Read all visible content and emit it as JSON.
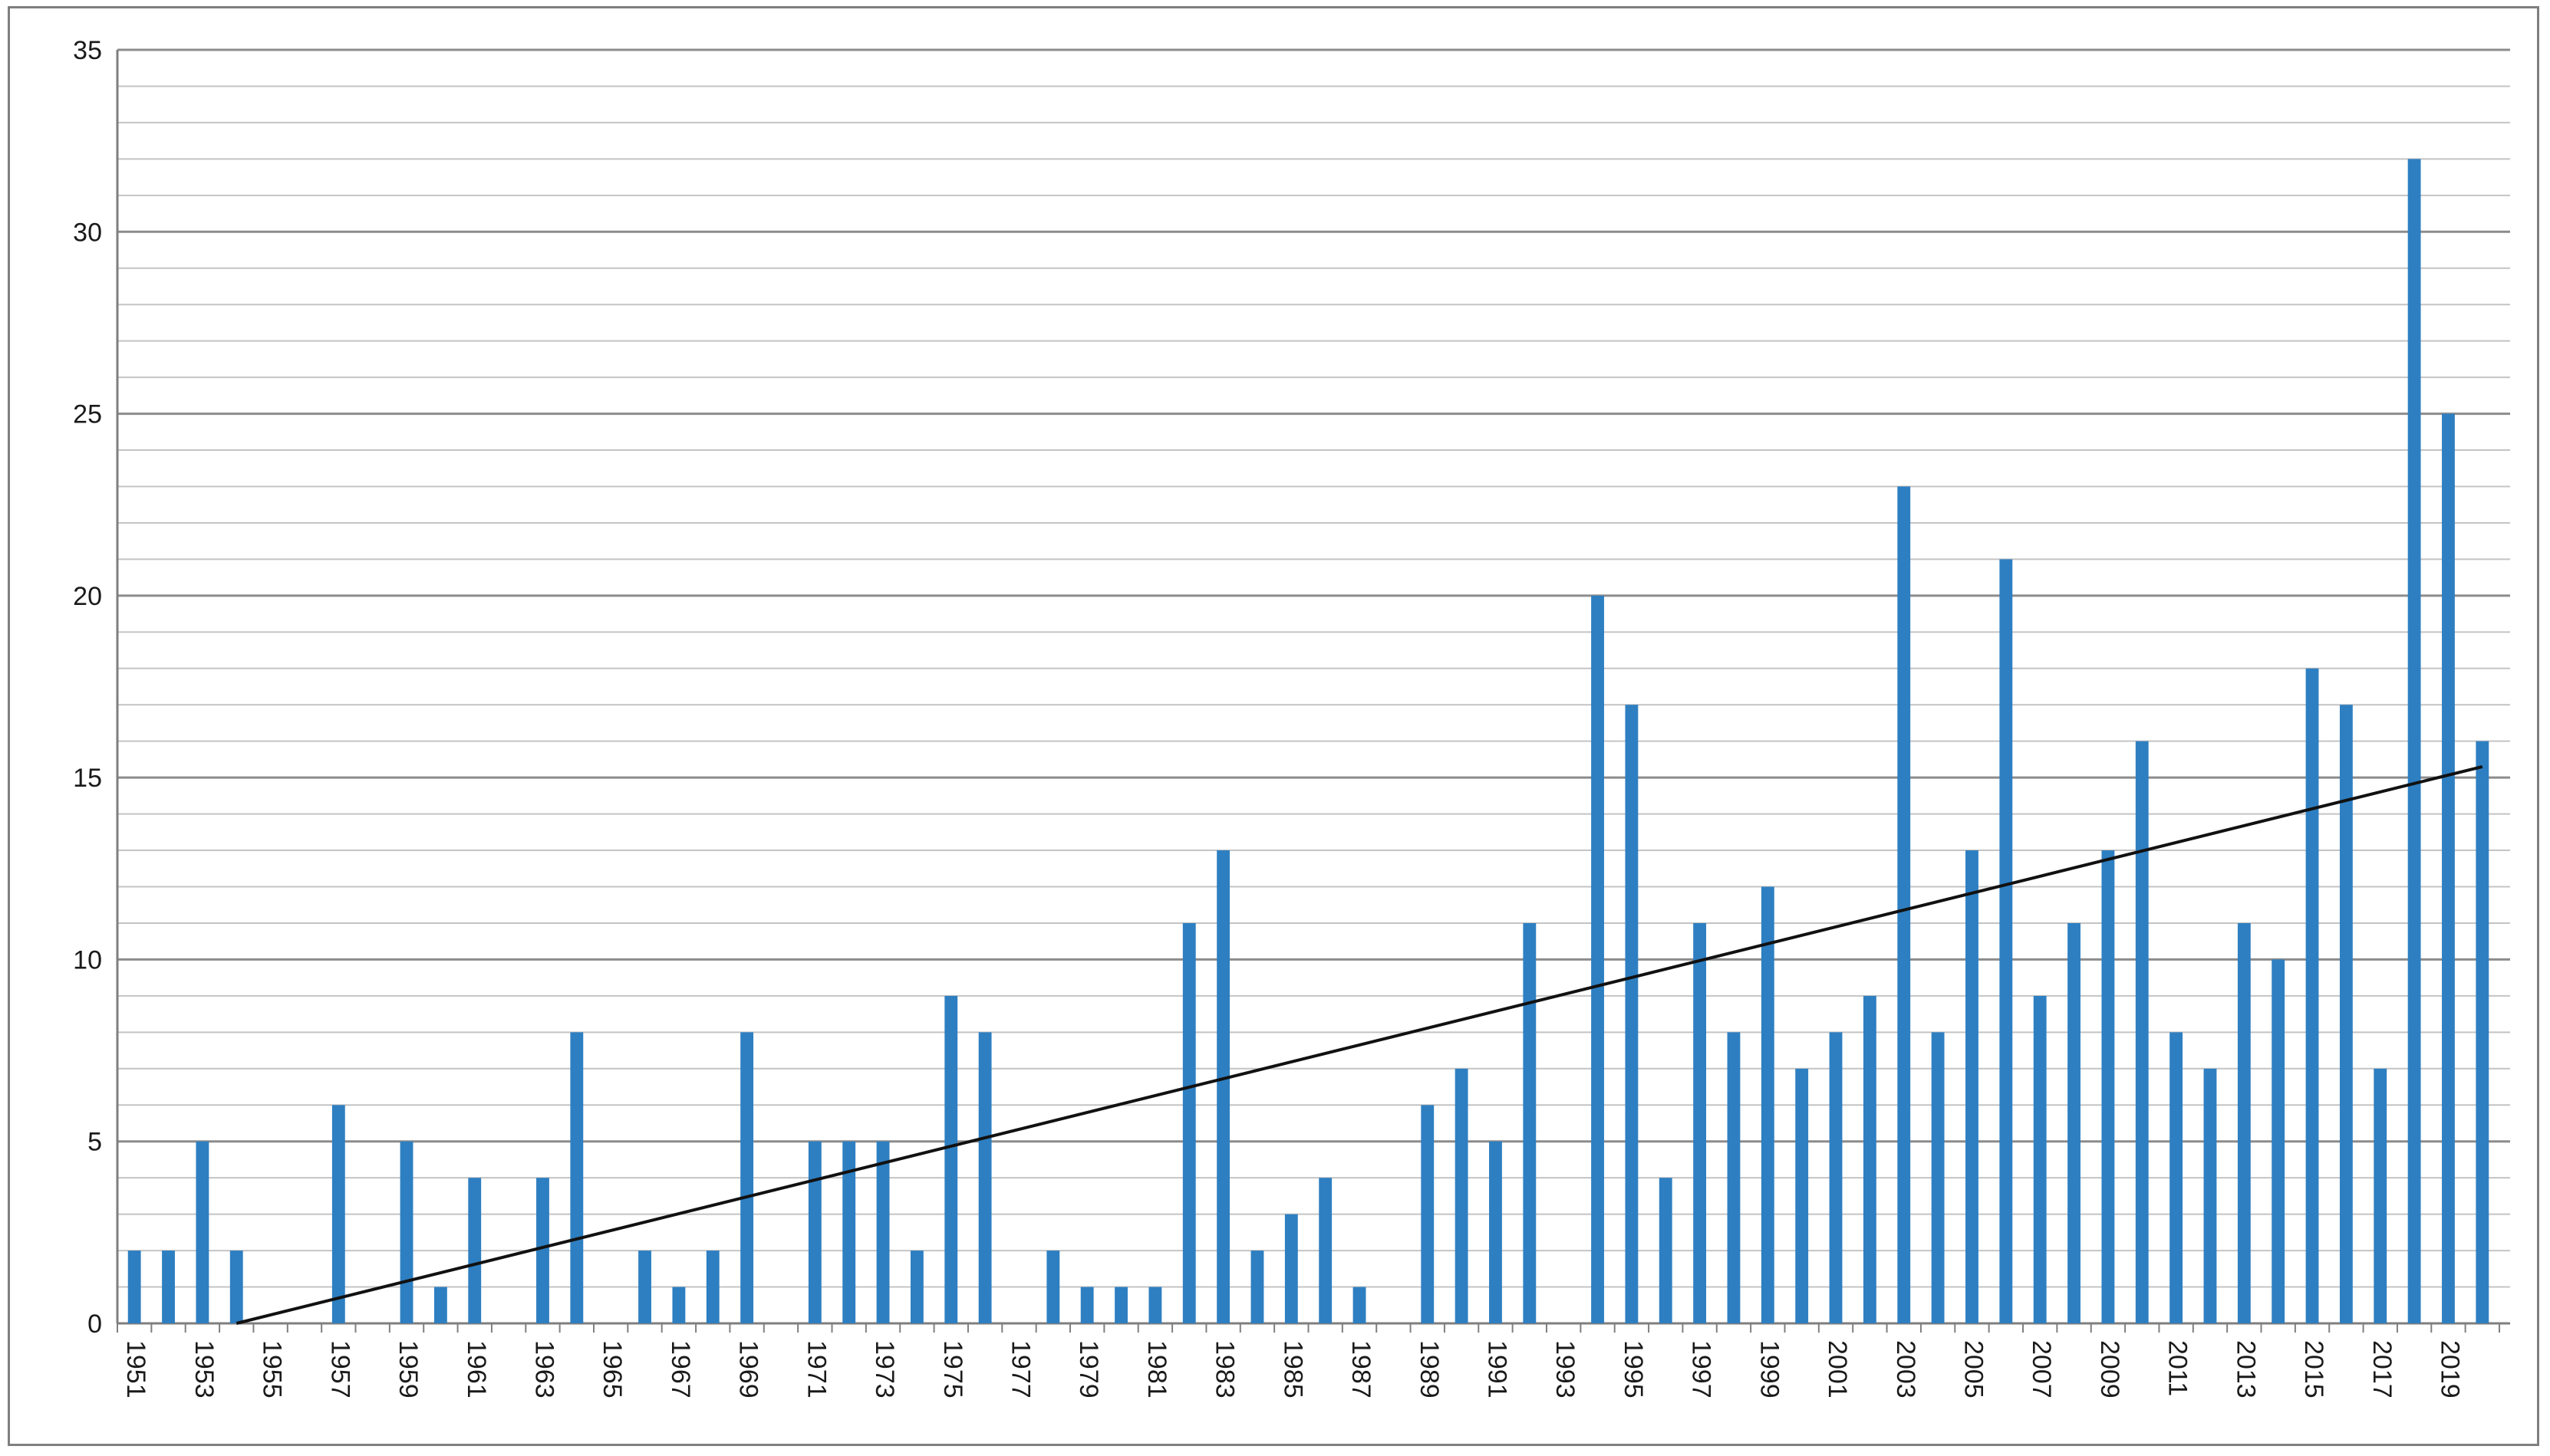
{
  "chart_data": {
    "type": "bar",
    "title": "",
    "xlabel": "",
    "ylabel": "",
    "ylim": [
      0,
      35
    ],
    "yticks": [
      0,
      5,
      10,
      15,
      20,
      25,
      30,
      35
    ],
    "minor_grid_step": 1,
    "grid": true,
    "legend": "none",
    "bar_color": "#2e7fc1",
    "trend_color": "#111111",
    "categories": [
      "1951",
      "1952",
      "1953",
      "1954",
      "1955",
      "1956",
      "1957",
      "1958",
      "1959",
      "1960",
      "1961",
      "1962",
      "1963",
      "1964",
      "1965",
      "1966",
      "1967",
      "1968",
      "1969",
      "1970",
      "1971",
      "1972",
      "1973",
      "1974",
      "1975",
      "1976",
      "1977",
      "1978",
      "1979",
      "1980",
      "1981",
      "1982",
      "1983",
      "1984",
      "1985",
      "1986",
      "1987",
      "1988",
      "1989",
      "1990",
      "1991",
      "1992",
      "1993",
      "1994",
      "1995",
      "1996",
      "1997",
      "1998",
      "1999",
      "2000",
      "2001",
      "2002",
      "2003",
      "2004",
      "2005",
      "2006",
      "2007",
      "2008",
      "2009",
      "2010",
      "2011",
      "2012",
      "2013",
      "2014",
      "2015",
      "2016",
      "2017",
      "2018",
      "2019",
      "2020"
    ],
    "tick_labels": [
      "1951",
      "1953",
      "1955",
      "1957",
      "1959",
      "1961",
      "1963",
      "1965",
      "1967",
      "1969",
      "1971",
      "1973",
      "1975",
      "1977",
      "1979",
      "1981",
      "1983",
      "1985",
      "1987",
      "1989",
      "1991",
      "1993",
      "1995",
      "1997",
      "1999",
      "2001",
      "2003",
      "2005",
      "2007",
      "2009",
      "2011",
      "2013",
      "2015",
      "2017",
      "2019"
    ],
    "values": [
      2,
      2,
      5,
      2,
      0,
      0,
      6,
      0,
      5,
      1,
      4,
      0,
      4,
      8,
      0,
      2,
      1,
      2,
      8,
      0,
      5,
      5,
      5,
      2,
      9,
      8,
      0,
      2,
      1,
      1,
      1,
      11,
      13,
      2,
      3,
      4,
      1,
      0,
      6,
      7,
      5,
      11,
      0,
      20,
      17,
      4,
      11,
      8,
      12,
      7,
      8,
      9,
      23,
      8,
      13,
      21,
      9,
      11,
      13,
      16,
      8,
      7,
      11,
      10,
      18,
      17,
      7,
      32,
      25,
      16
    ],
    "trendline": {
      "type": "linear",
      "start": {
        "x": "1954",
        "y": 0
      },
      "end": {
        "x": "2020",
        "y": 15.3
      }
    }
  }
}
